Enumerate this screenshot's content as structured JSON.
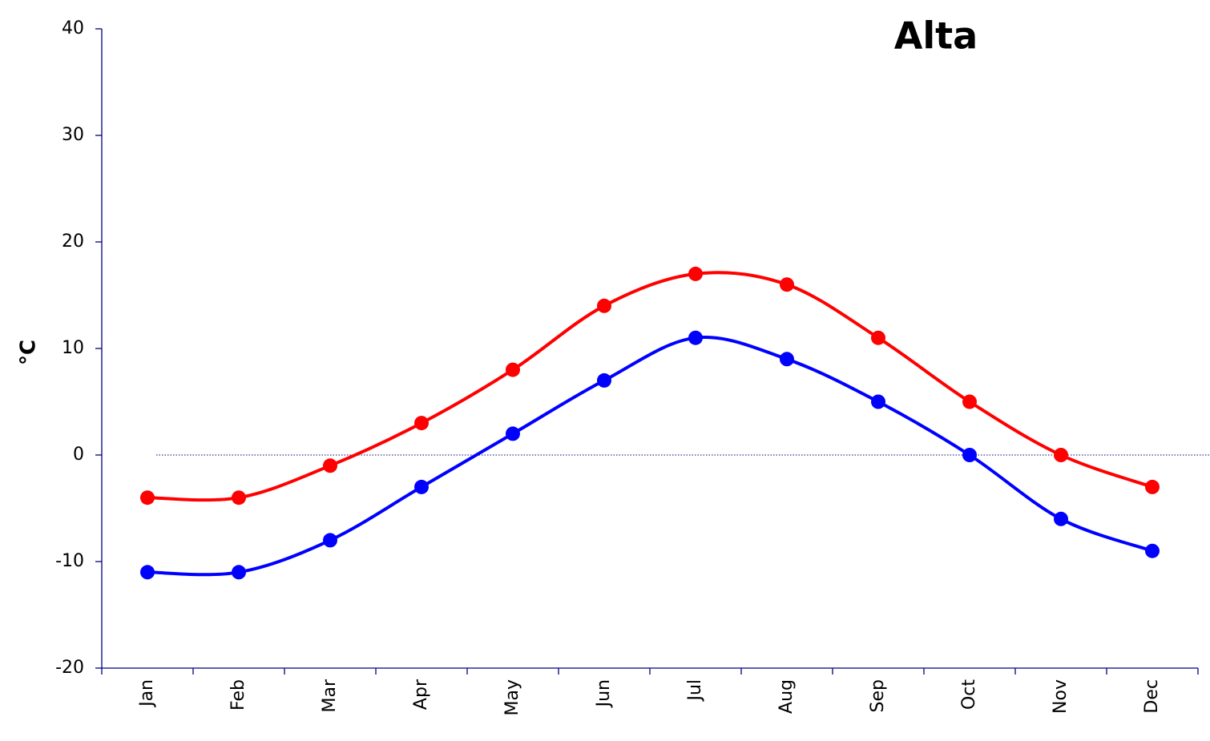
{
  "chart_data": {
    "type": "line",
    "title": "Alta",
    "y_label": "°C",
    "categories": [
      "Jan",
      "Feb",
      "Mar",
      "Apr",
      "May",
      "Jun",
      "Jul",
      "Aug",
      "Sep",
      "Oct",
      "Nov",
      "Dec"
    ],
    "series": [
      {
        "color": "#ff0000",
        "values": [
          -4,
          -4,
          -1,
          3,
          8,
          14,
          17,
          16,
          11,
          5,
          0,
          -3
        ]
      },
      {
        "color": "#0000ff",
        "values": [
          -11,
          -11,
          -8,
          -3,
          2,
          7,
          11,
          9,
          5,
          0,
          -6,
          -9
        ]
      }
    ],
    "ylim": [
      -20,
      40
    ],
    "yticks": [
      -20,
      -10,
      0,
      10,
      20,
      30,
      40
    ],
    "smooth": true,
    "zero_line": true
  }
}
